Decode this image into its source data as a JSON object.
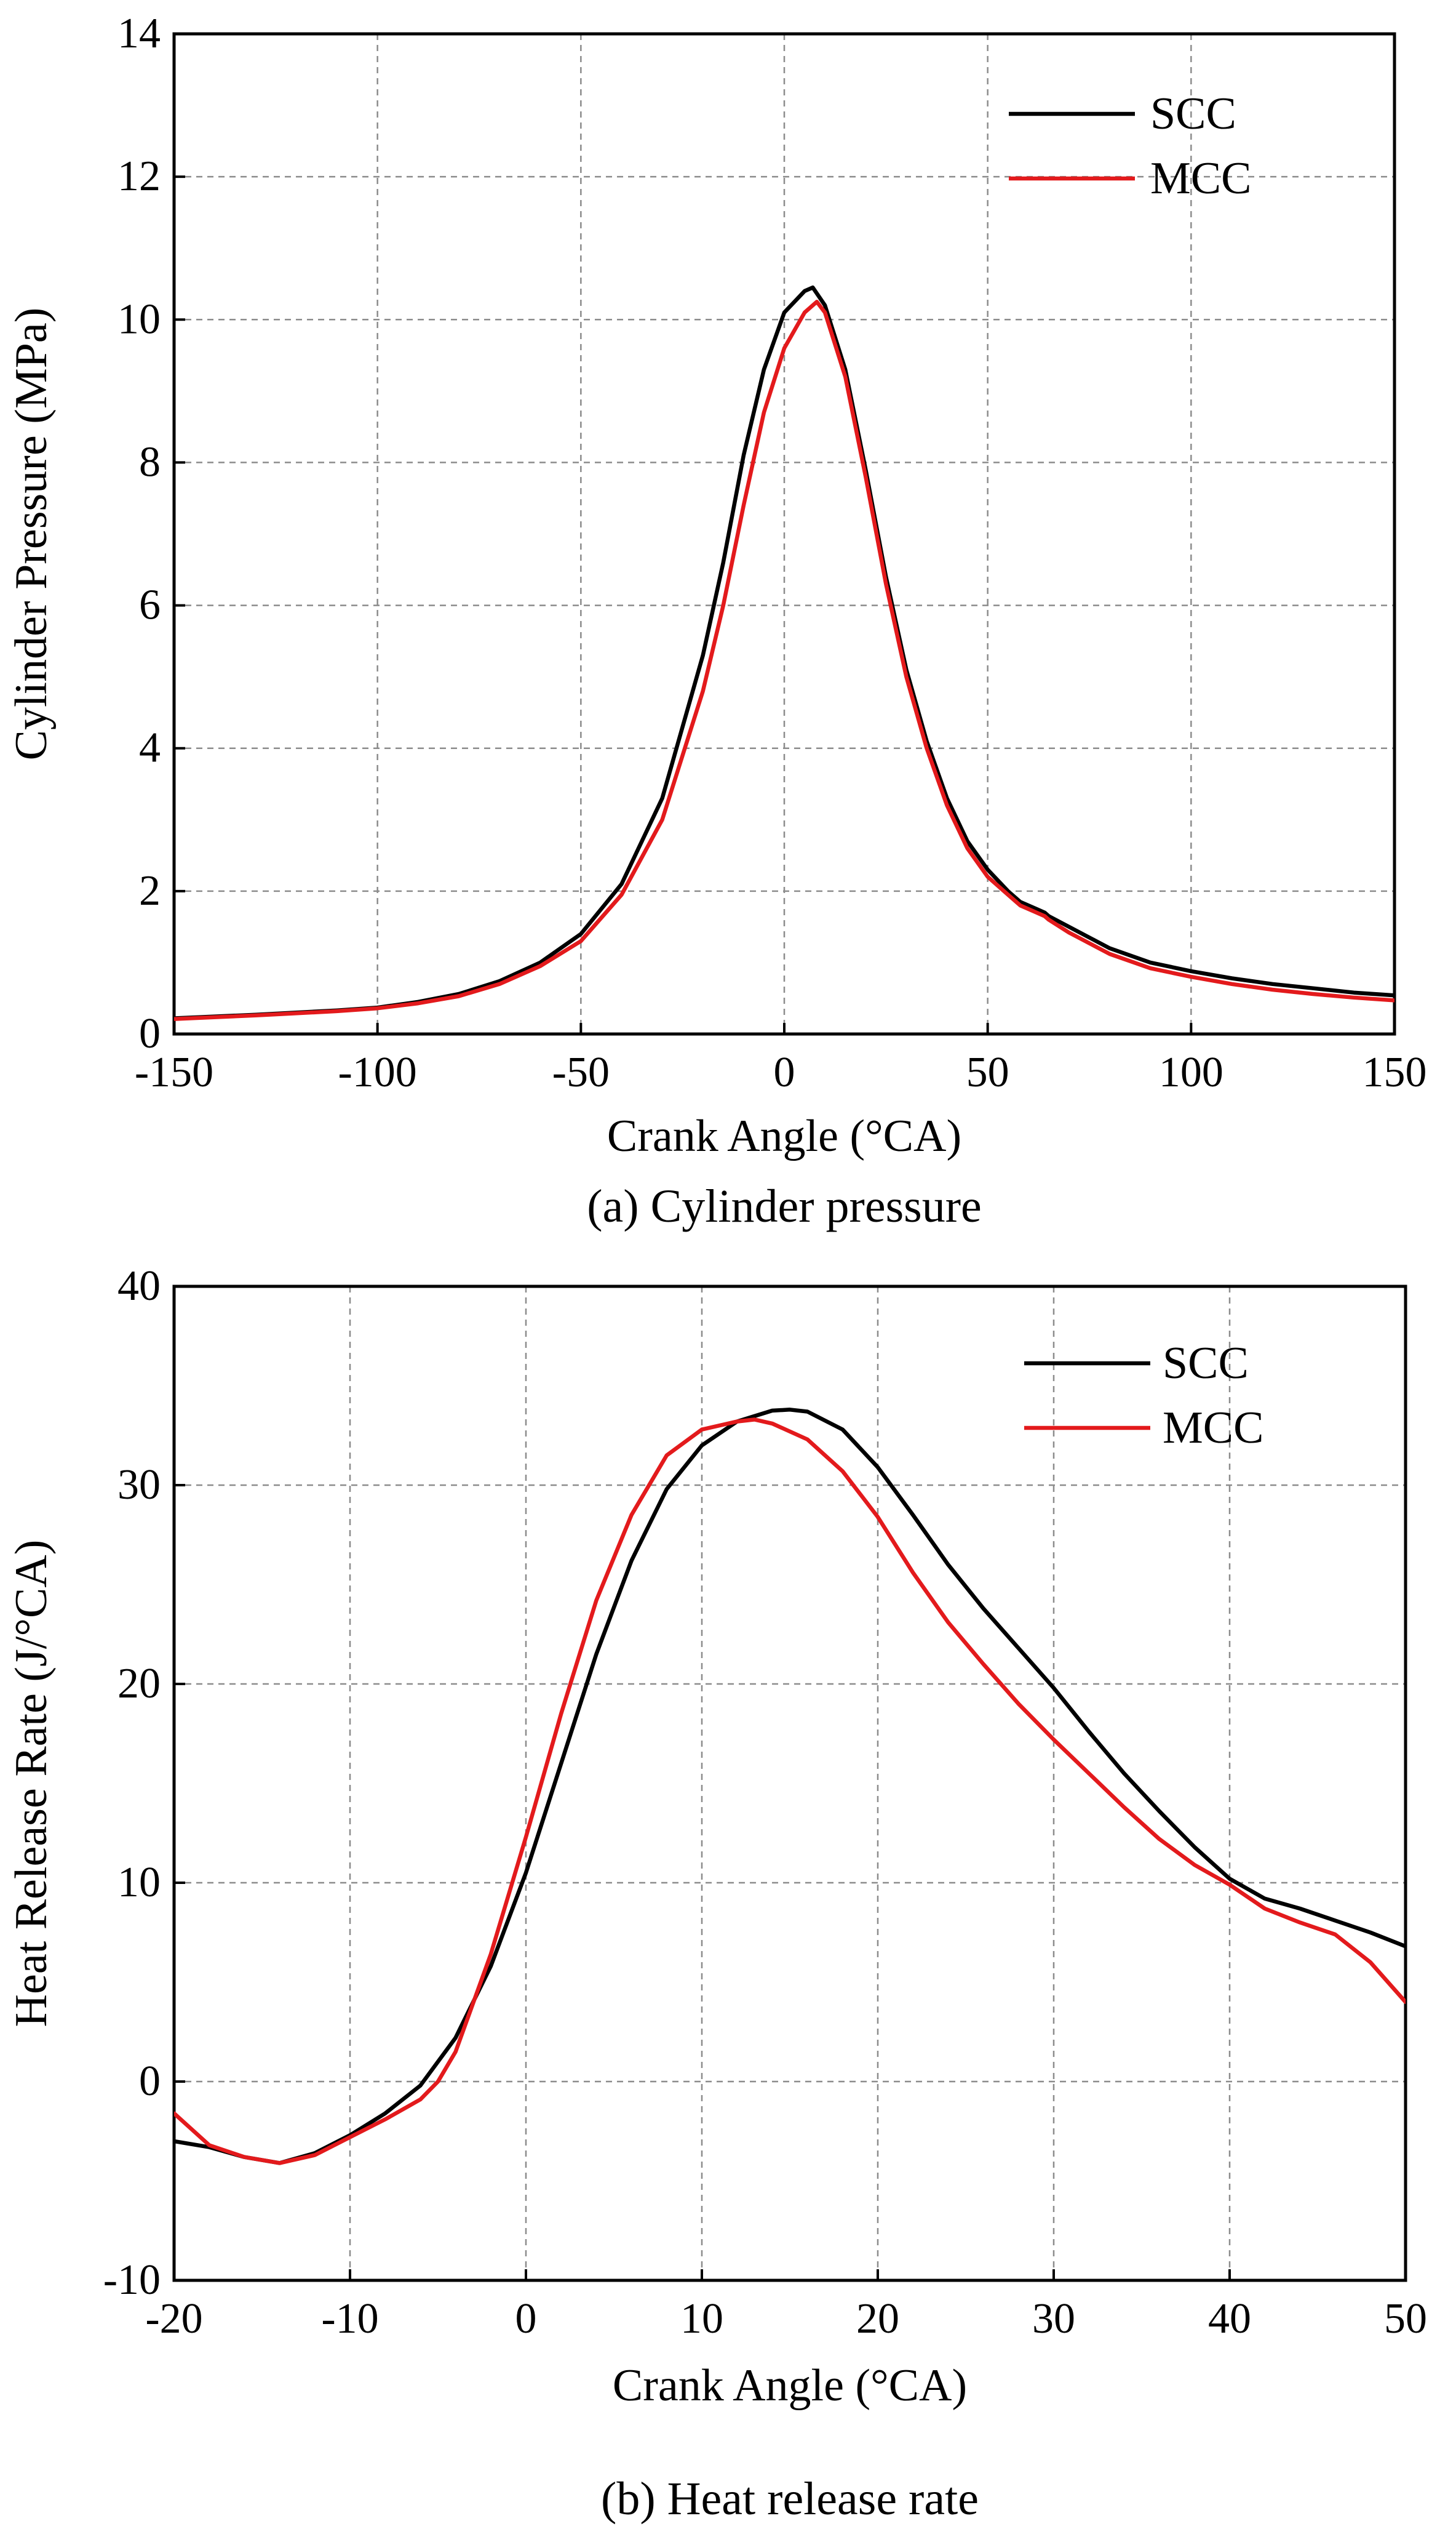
{
  "chart_data": [
    {
      "type": "line",
      "caption": "(a) Cylinder pressure",
      "xlabel": "Crank Angle (°CA)",
      "ylabel": "Cylinder Pressure (MPa)",
      "xlim": [
        -150,
        150
      ],
      "ylim": [
        0,
        14
      ],
      "xticks": [
        -150,
        -100,
        -50,
        0,
        50,
        100,
        150
      ],
      "yticks": [
        0,
        2,
        4,
        6,
        8,
        10,
        12,
        14
      ],
      "grid": true,
      "legend_position": "top-right",
      "series": [
        {
          "name": "SCC",
          "color": "#000000",
          "x": [
            -150,
            -130,
            -110,
            -100,
            -90,
            -80,
            -70,
            -60,
            -50,
            -40,
            -30,
            -20,
            -15,
            -10,
            -5,
            0,
            5,
            7,
            10,
            15,
            20,
            25,
            30,
            35,
            40,
            45,
            50,
            55,
            58,
            62,
            64,
            65,
            70,
            80,
            90,
            100,
            110,
            120,
            130,
            140,
            150
          ],
          "values": [
            0.22,
            0.27,
            0.33,
            0.37,
            0.45,
            0.56,
            0.74,
            1.0,
            1.4,
            2.1,
            3.3,
            5.3,
            6.6,
            8.1,
            9.3,
            10.1,
            10.4,
            10.45,
            10.2,
            9.3,
            7.9,
            6.4,
            5.1,
            4.1,
            3.3,
            2.7,
            2.3,
            2.0,
            1.85,
            1.75,
            1.7,
            1.65,
            1.5,
            1.2,
            1.0,
            0.88,
            0.78,
            0.7,
            0.64,
            0.58,
            0.54
          ]
        },
        {
          "name": "MCC",
          "color": "#e31a1c",
          "x": [
            -150,
            -130,
            -110,
            -100,
            -90,
            -80,
            -70,
            -60,
            -50,
            -40,
            -30,
            -20,
            -15,
            -10,
            -5,
            0,
            5,
            8,
            10,
            15,
            20,
            25,
            30,
            35,
            40,
            45,
            50,
            55,
            58,
            62,
            64,
            65,
            70,
            80,
            90,
            100,
            110,
            120,
            130,
            140,
            150
          ],
          "values": [
            0.21,
            0.26,
            0.32,
            0.36,
            0.43,
            0.53,
            0.7,
            0.95,
            1.3,
            1.95,
            3.0,
            4.8,
            6.0,
            7.4,
            8.7,
            9.6,
            10.1,
            10.25,
            10.1,
            9.2,
            7.8,
            6.3,
            5.0,
            4.0,
            3.2,
            2.6,
            2.2,
            1.95,
            1.8,
            1.7,
            1.65,
            1.6,
            1.42,
            1.12,
            0.92,
            0.8,
            0.7,
            0.62,
            0.56,
            0.51,
            0.47
          ]
        }
      ]
    },
    {
      "type": "line",
      "caption": "(b) Heat release rate",
      "xlabel": "Crank Angle (°CA)",
      "ylabel": "Heat Release Rate (J/°CA)",
      "xlim": [
        -20,
        50
      ],
      "ylim": [
        -10,
        40
      ],
      "xticks": [
        -20,
        -10,
        0,
        10,
        20,
        30,
        40,
        50
      ],
      "yticks": [
        -10,
        0,
        10,
        20,
        30,
        40
      ],
      "grid": true,
      "legend_position": "top-right",
      "series": [
        {
          "name": "SCC",
          "color": "#000000",
          "x": [
            -20,
            -18,
            -16,
            -14,
            -12,
            -10,
            -8,
            -6,
            -4,
            -2,
            0,
            2,
            4,
            6,
            8,
            10,
            12,
            14,
            15,
            16,
            18,
            20,
            22,
            24,
            26,
            28,
            30,
            32,
            34,
            36,
            38,
            40,
            42,
            44,
            46,
            48,
            50
          ],
          "values": [
            -3.0,
            -3.3,
            -3.8,
            -4.1,
            -3.6,
            -2.7,
            -1.6,
            -0.2,
            2.2,
            5.8,
            10.5,
            16.0,
            21.5,
            26.2,
            29.8,
            32.0,
            33.2,
            33.75,
            33.8,
            33.7,
            32.8,
            30.9,
            28.5,
            26.0,
            23.8,
            21.8,
            19.8,
            17.6,
            15.5,
            13.6,
            11.8,
            10.2,
            9.2,
            8.7,
            8.1,
            7.5,
            6.8
          ]
        },
        {
          "name": "MCC",
          "color": "#e31a1c",
          "x": [
            -20,
            -18,
            -16,
            -14,
            -12,
            -10,
            -8,
            -6,
            -5,
            -4,
            -2,
            0,
            2,
            4,
            6,
            8,
            10,
            12,
            13,
            14,
            16,
            18,
            20,
            22,
            24,
            26,
            28,
            30,
            32,
            34,
            36,
            38,
            40,
            42,
            44,
            46,
            48,
            50
          ],
          "values": [
            -1.6,
            -3.2,
            -3.8,
            -4.1,
            -3.7,
            -2.8,
            -1.9,
            -0.9,
            0.0,
            1.5,
            6.4,
            12.3,
            18.5,
            24.2,
            28.5,
            31.5,
            32.8,
            33.2,
            33.3,
            33.1,
            32.3,
            30.7,
            28.4,
            25.6,
            23.1,
            21.0,
            19.0,
            17.2,
            15.5,
            13.8,
            12.2,
            10.9,
            9.9,
            8.7,
            8.0,
            7.4,
            6.0,
            4.0
          ]
        }
      ]
    }
  ]
}
